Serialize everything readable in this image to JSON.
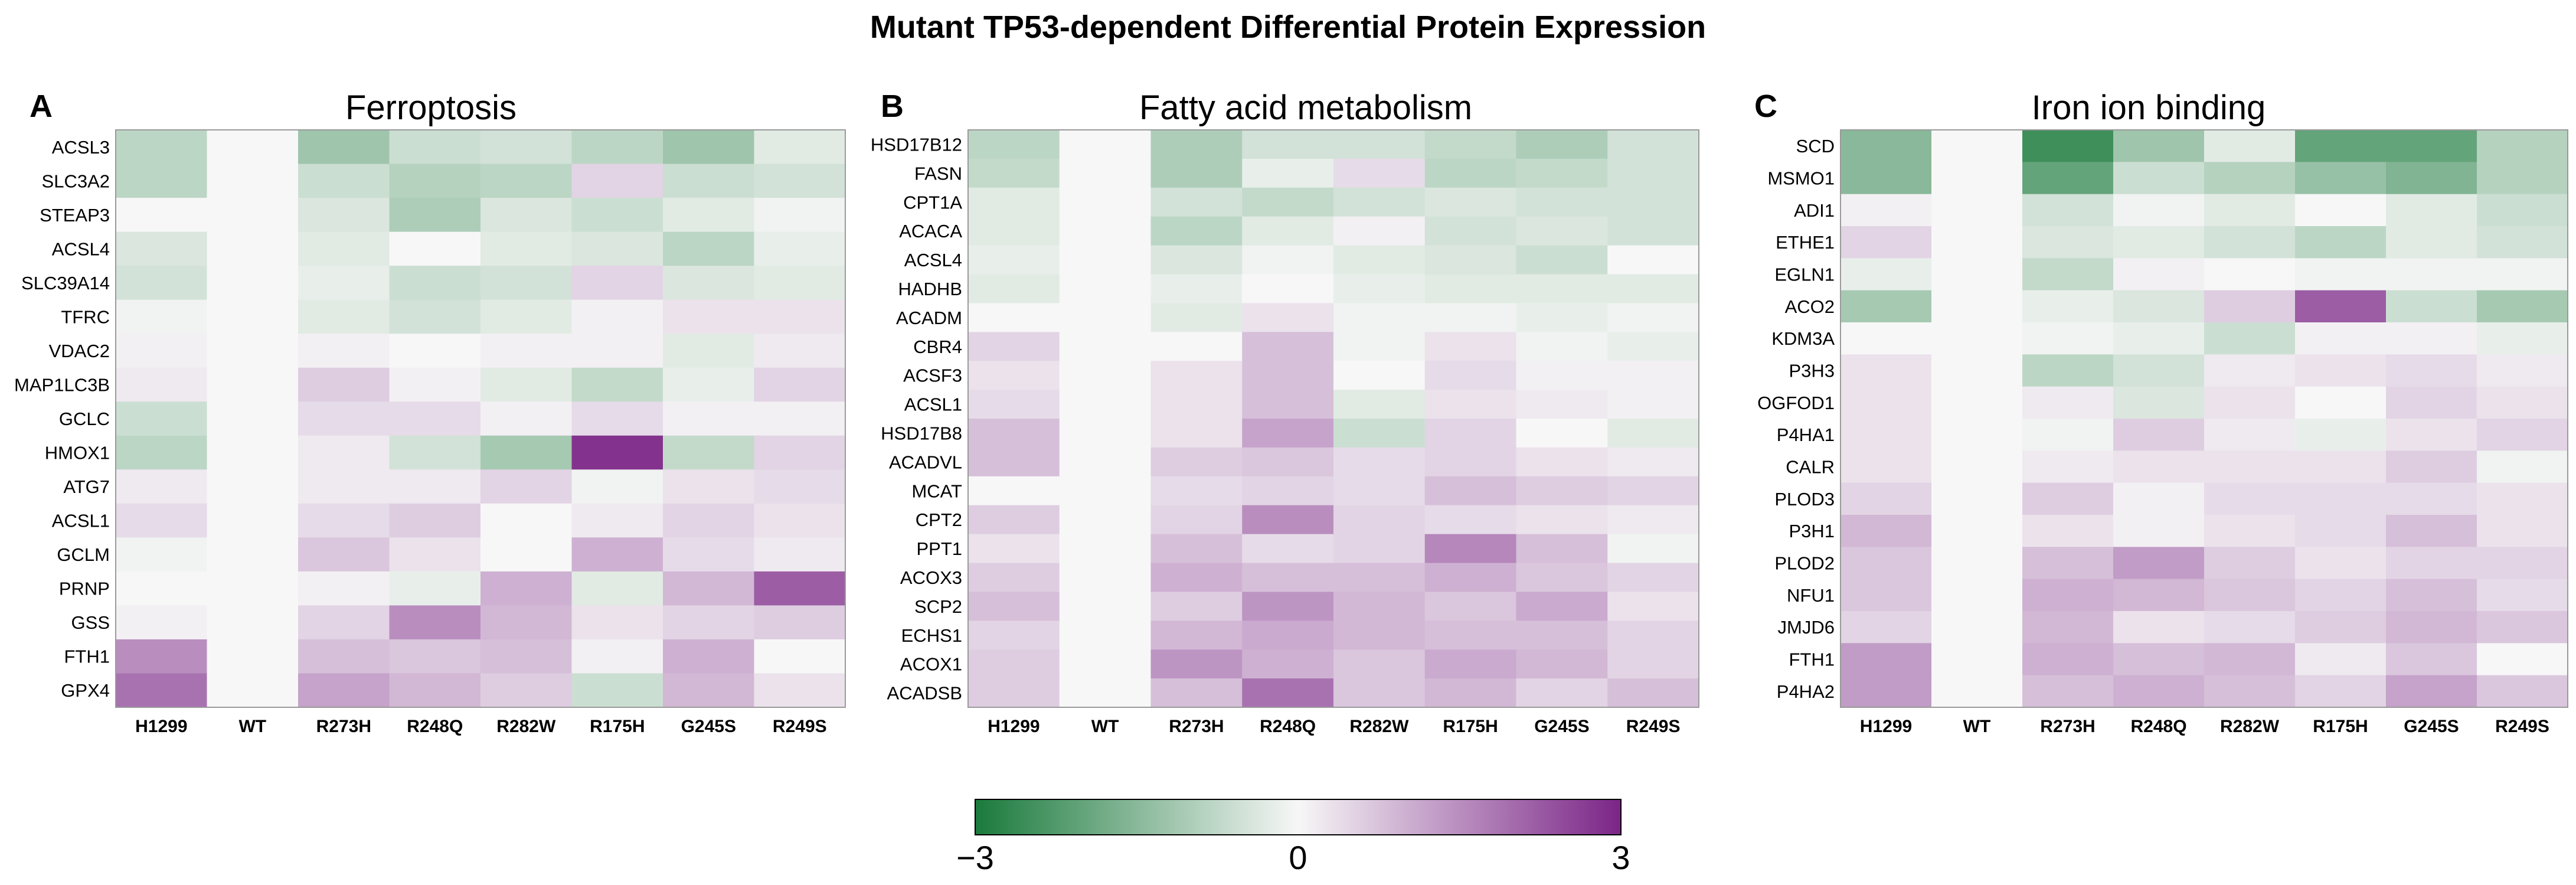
{
  "title": "Mutant TP53-dependent Differential Protein Expression",
  "colors": {
    "low": "#1a7a3c",
    "mid": "#f7f7f7",
    "high": "#7b2587"
  },
  "colorbar": {
    "min": -3,
    "max": 3,
    "ticks": [
      "−3",
      "0",
      "3"
    ]
  },
  "chart_data": [
    {
      "type": "heatmap",
      "panel": "A",
      "title": "Ferroptosis",
      "columns": [
        "H1299",
        "WT",
        "R273H",
        "R248Q",
        "R282W",
        "R175H",
        "G245S",
        "R249S"
      ],
      "rows": [
        "ACSL3",
        "SLC3A2",
        "STEAP3",
        "ACSL4",
        "SLC39A14",
        "TFRC",
        "VDAC2",
        "MAP1LC3B",
        "GCLC",
        "HMOX1",
        "ATG7",
        "ACSL1",
        "GCLM",
        "PRNP",
        "GSS",
        "FTH1",
        "GPX4"
      ],
      "values": [
        [
          -0.8,
          0,
          -1.2,
          -0.6,
          -0.5,
          -0.8,
          -1.2,
          -0.3
        ],
        [
          -0.8,
          0,
          -0.6,
          -0.9,
          -0.8,
          0.5,
          -0.6,
          -0.5
        ],
        [
          0,
          0,
          -0.4,
          -1.0,
          -0.4,
          -0.6,
          -0.3,
          -0.1
        ],
        [
          -0.4,
          0,
          -0.3,
          0,
          -0.3,
          -0.4,
          -0.8,
          -0.2
        ],
        [
          -0.5,
          0,
          -0.2,
          -0.6,
          -0.5,
          0.5,
          -0.4,
          -0.3
        ],
        [
          -0.1,
          0,
          -0.3,
          -0.5,
          -0.3,
          0.1,
          0.3,
          0.3
        ],
        [
          0.1,
          0,
          0.1,
          0,
          0.1,
          0.1,
          -0.3,
          0.2
        ],
        [
          0.2,
          0,
          0.6,
          0.1,
          -0.3,
          -0.7,
          -0.2,
          0.5
        ],
        [
          -0.6,
          0,
          0.4,
          0.4,
          0.1,
          0.4,
          0.1,
          0.1
        ],
        [
          -0.8,
          0,
          0.2,
          -0.5,
          -1.1,
          2.8,
          -0.7,
          0.5
        ],
        [
          0.2,
          0,
          0.2,
          0.2,
          0.5,
          -0.1,
          0.3,
          0.4
        ],
        [
          0.4,
          0,
          0.4,
          0.6,
          0,
          0.2,
          0.5,
          0.3
        ],
        [
          -0.1,
          0,
          0.7,
          0.3,
          0,
          1.0,
          0.4,
          0.2
        ],
        [
          0,
          0,
          0.1,
          -0.2,
          1.0,
          -0.3,
          0.9,
          2.2
        ],
        [
          0.1,
          0,
          0.5,
          1.5,
          0.9,
          0.3,
          0.5,
          0.6
        ],
        [
          1.5,
          0,
          0.8,
          0.7,
          0.8,
          0.1,
          1.0,
          0
        ],
        [
          1.9,
          0,
          1.2,
          0.9,
          0.6,
          -0.6,
          0.9,
          0.3
        ]
      ]
    },
    {
      "type": "heatmap",
      "panel": "B",
      "title": "Fatty acid metabolism",
      "columns": [
        "H1299",
        "WT",
        "R273H",
        "R248Q",
        "R282W",
        "R175H",
        "G245S",
        "R249S"
      ],
      "rows": [
        "HSD17B12",
        "FASN",
        "CPT1A",
        "ACACA",
        "ACSL4",
        "HADHB",
        "ACADM",
        "CBR4",
        "ACSF3",
        "ACSL1",
        "HSD17B8",
        "ACADVL",
        "MCAT",
        "CPT2",
        "PPT1",
        "ACOX3",
        "SCP2",
        "ECHS1",
        "ACOX1",
        "ACADSB"
      ],
      "values": [
        [
          -0.8,
          0,
          -1.0,
          -0.5,
          -0.5,
          -0.7,
          -1.0,
          -0.5
        ],
        [
          -0.7,
          0,
          -1.0,
          -0.2,
          0.4,
          -0.8,
          -0.7,
          -0.5
        ],
        [
          -0.3,
          0,
          -0.5,
          -0.7,
          -0.5,
          -0.4,
          -0.5,
          -0.5
        ],
        [
          -0.3,
          0,
          -0.8,
          -0.3,
          0.1,
          -0.5,
          -0.4,
          -0.5
        ],
        [
          -0.2,
          0,
          -0.4,
          -0.1,
          -0.3,
          -0.4,
          -0.6,
          0
        ],
        [
          -0.3,
          0,
          -0.2,
          0,
          -0.2,
          -0.3,
          -0.3,
          -0.3
        ],
        [
          0,
          0,
          -0.3,
          0.3,
          -0.1,
          -0.1,
          -0.2,
          -0.1
        ],
        [
          0.5,
          0,
          0,
          0.8,
          -0.1,
          0.3,
          -0.1,
          -0.2
        ],
        [
          0.3,
          0,
          0.3,
          0.8,
          0,
          0.4,
          0.1,
          0.1
        ],
        [
          0.4,
          0,
          0.3,
          0.8,
          -0.3,
          0.3,
          0.2,
          0.1
        ],
        [
          0.8,
          0,
          0.3,
          1.2,
          -0.6,
          0.5,
          0,
          -0.3
        ],
        [
          0.8,
          0,
          0.6,
          0.7,
          0.4,
          0.5,
          0.3,
          0.2
        ],
        [
          0,
          0,
          0.4,
          0.5,
          0.4,
          0.8,
          0.6,
          0.5
        ],
        [
          0.6,
          0,
          0.5,
          1.5,
          0.5,
          0.4,
          0.3,
          0.2
        ],
        [
          0.3,
          0,
          0.8,
          0.4,
          0.5,
          1.6,
          0.8,
          -0.1
        ],
        [
          0.6,
          0,
          1.0,
          0.8,
          0.8,
          1.0,
          0.7,
          0.5
        ],
        [
          0.8,
          0,
          0.6,
          1.4,
          0.9,
          0.7,
          1.1,
          0.3
        ],
        [
          0.5,
          0,
          0.9,
          1.1,
          0.9,
          0.8,
          0.8,
          0.5
        ],
        [
          0.6,
          0,
          1.4,
          1.0,
          0.7,
          1.1,
          0.9,
          0.5
        ],
        [
          0.6,
          0,
          0.8,
          1.9,
          0.7,
          0.9,
          0.5,
          0.8
        ]
      ]
    },
    {
      "type": "heatmap",
      "panel": "C",
      "title": "Iron ion binding",
      "columns": [
        "H1299",
        "WT",
        "R273H",
        "R248Q",
        "R282W",
        "R175H",
        "G245S",
        "R249S"
      ],
      "rows": [
        "SCD",
        "MSMO1",
        "ADI1",
        "ETHE1",
        "EGLN1",
        "ACO2",
        "KDM3A",
        "P3H3",
        "OGFOD1",
        "P4HA1",
        "CALR",
        "PLOD3",
        "P3H1",
        "PLOD2",
        "NFU1",
        "JMJD6",
        "FTH1",
        "P4HA2"
      ],
      "values": [
        [
          -1.5,
          0,
          -2.5,
          -1.2,
          -0.3,
          -2.0,
          -2.0,
          -0.9
        ],
        [
          -1.5,
          0,
          -2.0,
          -0.6,
          -0.9,
          -1.3,
          -1.6,
          -0.9
        ],
        [
          0.1,
          0,
          -0.5,
          -0.1,
          -0.3,
          0,
          -0.3,
          -0.6
        ],
        [
          0.5,
          0,
          -0.4,
          -0.3,
          -0.5,
          -0.8,
          -0.3,
          -0.5
        ],
        [
          -0.2,
          0,
          -0.7,
          0.1,
          0,
          -0.1,
          -0.1,
          -0.1
        ],
        [
          -1.1,
          0,
          -0.2,
          -0.4,
          0.6,
          2.2,
          -0.6,
          -1.1
        ],
        [
          0,
          0,
          -0.1,
          -0.2,
          -0.6,
          0.1,
          0.1,
          -0.2
        ],
        [
          0.3,
          0,
          -0.8,
          -0.5,
          0.2,
          0.3,
          0.4,
          0.2
        ],
        [
          0.3,
          0,
          0.2,
          -0.4,
          0.3,
          0,
          0.5,
          0.3
        ],
        [
          0.3,
          0,
          -0.1,
          0.6,
          0.2,
          -0.2,
          0.3,
          0.5
        ],
        [
          0.3,
          0,
          0.2,
          0.3,
          0.3,
          0.3,
          0.6,
          -0.1
        ],
        [
          0.5,
          0,
          0.6,
          0.1,
          0.4,
          0.4,
          0.4,
          0.3
        ],
        [
          0.9,
          0,
          0.3,
          0.1,
          0.3,
          0.4,
          0.8,
          0.3
        ],
        [
          0.7,
          0,
          0.8,
          1.3,
          0.6,
          0.3,
          0.5,
          0.5
        ],
        [
          0.7,
          0,
          1.0,
          0.9,
          0.7,
          0.5,
          0.8,
          0.4
        ],
        [
          0.5,
          0,
          0.9,
          0.3,
          0.4,
          0.6,
          0.9,
          0.7
        ],
        [
          1.3,
          0,
          1.0,
          0.8,
          0.9,
          0.2,
          0.7,
          0
        ],
        [
          1.3,
          0,
          0.8,
          1.0,
          0.8,
          0.5,
          1.2,
          0.7
        ]
      ]
    }
  ]
}
